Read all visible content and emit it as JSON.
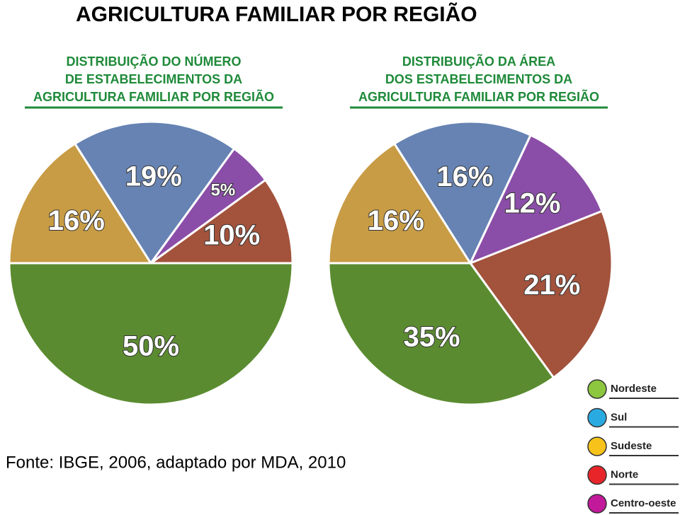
{
  "title": "AGRICULTURA FAMILIAR POR REGIÃO",
  "source": "Fonte: IBGE, 2006, adaptado por MDA, 2010",
  "legend": {
    "categories": [
      "Nordeste",
      "Sul",
      "Sudeste",
      "Norte",
      "Centro-oeste"
    ],
    "colors": [
      "#8dc63f",
      "#29abe2",
      "#f7c31a",
      "#e8262a",
      "#c2199a"
    ]
  },
  "chart_data": [
    {
      "type": "pie",
      "title": [
        "DISTRIBUIÇÃO DO NÚMERO",
        "DE ESTABELECIMENTOS DA",
        "AGRICULTURA FAMILIAR POR REGIÃO"
      ],
      "values": [
        50,
        19,
        16,
        10,
        5
      ],
      "value_labels": [
        "50%",
        "19%",
        "16%",
        "10%",
        "5%"
      ],
      "colors": [
        "#5b8b30",
        "#6683b3",
        "#c89c45",
        "#a3523c",
        "#8b4ea8"
      ]
    },
    {
      "type": "pie",
      "title": [
        "DISTRIBUIÇÃO DA ÁREA",
        "DOS ESTABELECIMENTOS DA",
        "AGRICULTURA FAMILIAR POR REGIÃO"
      ],
      "values": [
        35,
        16,
        16,
        21,
        12
      ],
      "value_labels": [
        "35%",
        "16%",
        "16%",
        "21%",
        "12%"
      ],
      "colors": [
        "#5b8b30",
        "#6683b3",
        "#c89c45",
        "#a3523c",
        "#8b4ea8"
      ]
    }
  ]
}
